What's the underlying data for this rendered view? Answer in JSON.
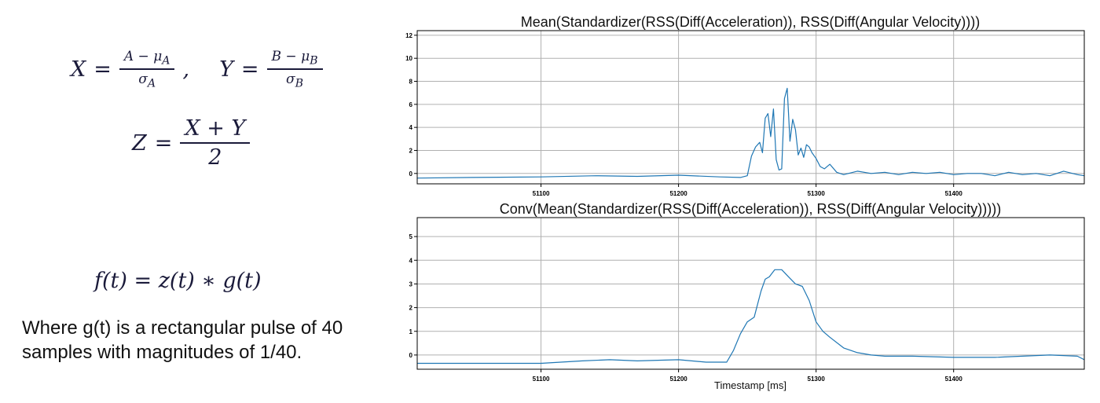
{
  "equations": {
    "x_lhs": "X",
    "eq": "=",
    "x_num": "A − μ",
    "x_num_sub": "A",
    "x_den": "σ",
    "x_den_sub": "A",
    "comma": ",",
    "y_lhs": "Y",
    "y_num": "B − μ",
    "y_num_sub": "B",
    "y_den": "σ",
    "y_den_sub": "B",
    "z_lhs": "Z",
    "z_num": "X + Y",
    "z_den": "2",
    "f_expr": "f(t) =  z(t)  ∗ g(t)"
  },
  "note": "Where g(t) is a rectangular pulse of 40 samples with magnitudes of 1/40.",
  "line_color": "#1f77b4",
  "chart_data": [
    {
      "type": "line",
      "title": "Mean(Standardizer(RSS(Diff(Acceleration)), RSS(Diff(Angular Velocity))))",
      "xlabel": "",
      "ylabel": "",
      "xlim": [
        51010,
        51495
      ],
      "ylim": [
        -0.9,
        12.4
      ],
      "xticks": [
        51100,
        51200,
        51300,
        51400
      ],
      "yticks": [
        0,
        2,
        4,
        6,
        8,
        10,
        12
      ],
      "grid": true,
      "x": [
        51010,
        51050,
        51100,
        51140,
        51170,
        51200,
        51230,
        51245,
        51250,
        51253,
        51256,
        51259,
        51261,
        51263,
        51265,
        51267,
        51269,
        51271,
        51273,
        51275,
        51277,
        51279,
        51281,
        51283,
        51285,
        51287,
        51289,
        51291,
        51293,
        51295,
        51297,
        51300,
        51303,
        51306,
        51310,
        51315,
        51320,
        51330,
        51340,
        51350,
        51360,
        51370,
        51380,
        51390,
        51400,
        51410,
        51420,
        51430,
        51440,
        51450,
        51460,
        51470,
        51480,
        51490,
        51495
      ],
      "values": [
        -0.4,
        -0.35,
        -0.3,
        -0.2,
        -0.25,
        -0.15,
        -0.3,
        -0.35,
        -0.2,
        1.5,
        2.3,
        2.7,
        1.8,
        4.8,
        5.2,
        3.2,
        5.6,
        1.2,
        0.3,
        0.4,
        6.5,
        7.4,
        2.8,
        4.7,
        3.8,
        1.6,
        2.2,
        1.4,
        2.5,
        2.3,
        1.8,
        1.3,
        0.6,
        0.4,
        0.8,
        0.1,
        -0.1,
        0.2,
        0.0,
        0.1,
        -0.1,
        0.1,
        0.0,
        0.1,
        -0.1,
        0.0,
        0.0,
        -0.2,
        0.1,
        -0.1,
        0.0,
        -0.2,
        0.2,
        -0.1,
        -0.2
      ]
    },
    {
      "type": "line",
      "title": "Conv(Mean(Standardizer(RSS(Diff(Acceleration)), RSS(Diff(Angular Velocity)))))",
      "xlabel": "Timestamp [ms]",
      "ylabel": "",
      "xlim": [
        51010,
        51495
      ],
      "ylim": [
        -0.6,
        5.8
      ],
      "xticks": [
        51100,
        51200,
        51300,
        51400
      ],
      "yticks": [
        0,
        1,
        2,
        3,
        4,
        5
      ],
      "grid": true,
      "x": [
        51010,
        51050,
        51100,
        51130,
        51150,
        51170,
        51200,
        51220,
        51235,
        51240,
        51245,
        51250,
        51255,
        51260,
        51263,
        51266,
        51270,
        51275,
        51280,
        51285,
        51290,
        51295,
        51300,
        51305,
        51310,
        51320,
        51330,
        51340,
        51350,
        51370,
        51400,
        51430,
        51450,
        51470,
        51490,
        51495
      ],
      "values": [
        -0.35,
        -0.35,
        -0.35,
        -0.25,
        -0.2,
        -0.25,
        -0.2,
        -0.3,
        -0.3,
        0.2,
        0.9,
        1.4,
        1.6,
        2.7,
        3.2,
        3.3,
        3.6,
        3.6,
        3.3,
        3.0,
        2.9,
        2.3,
        1.4,
        1.0,
        0.75,
        0.3,
        0.1,
        0.0,
        -0.05,
        -0.05,
        -0.1,
        -0.1,
        -0.05,
        0.0,
        -0.05,
        -0.2
      ]
    }
  ]
}
